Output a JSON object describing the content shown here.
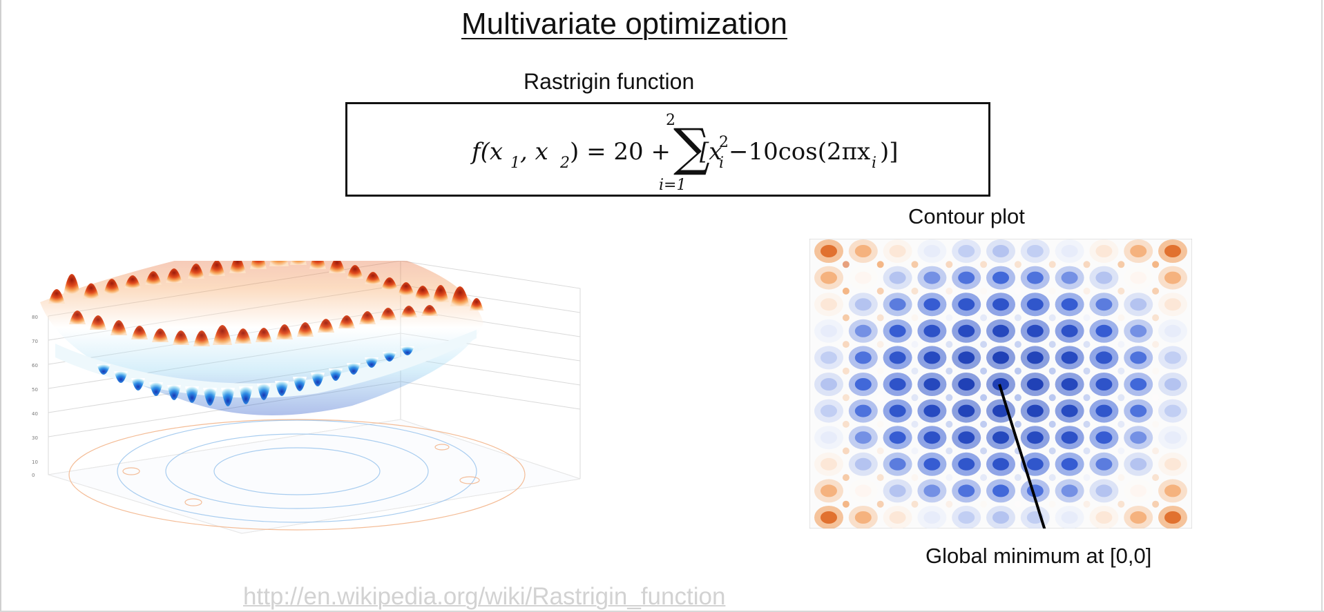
{
  "slide": {
    "title": "Multivariate optimization",
    "function_name": "Rastrigin function",
    "contour_title": "Contour plot",
    "annotation": "Global minimum at [0,0]",
    "source_link": "http://en.wikipedia.org/wiki/Rastrigin_function"
  },
  "equation": {
    "lhs": "f(x",
    "sub1": "1",
    "comma": ", x",
    "sub2": "2",
    "eq": ") = 20 +",
    "sum_upper": "2",
    "sum_lower": "i=1",
    "bracket_open": "[x",
    "sub_i": "i",
    "sup_2": "2",
    "term": "−10cos(2πx",
    "sub_i2": "i",
    "close": ")]"
  },
  "colors": {
    "high": "#b2200e",
    "mid_high": "#f08a3a",
    "neutral": "#ffffff",
    "low": "#3a62d8",
    "lowest": "#1e3fb4",
    "link": "#d2d2d2"
  }
}
